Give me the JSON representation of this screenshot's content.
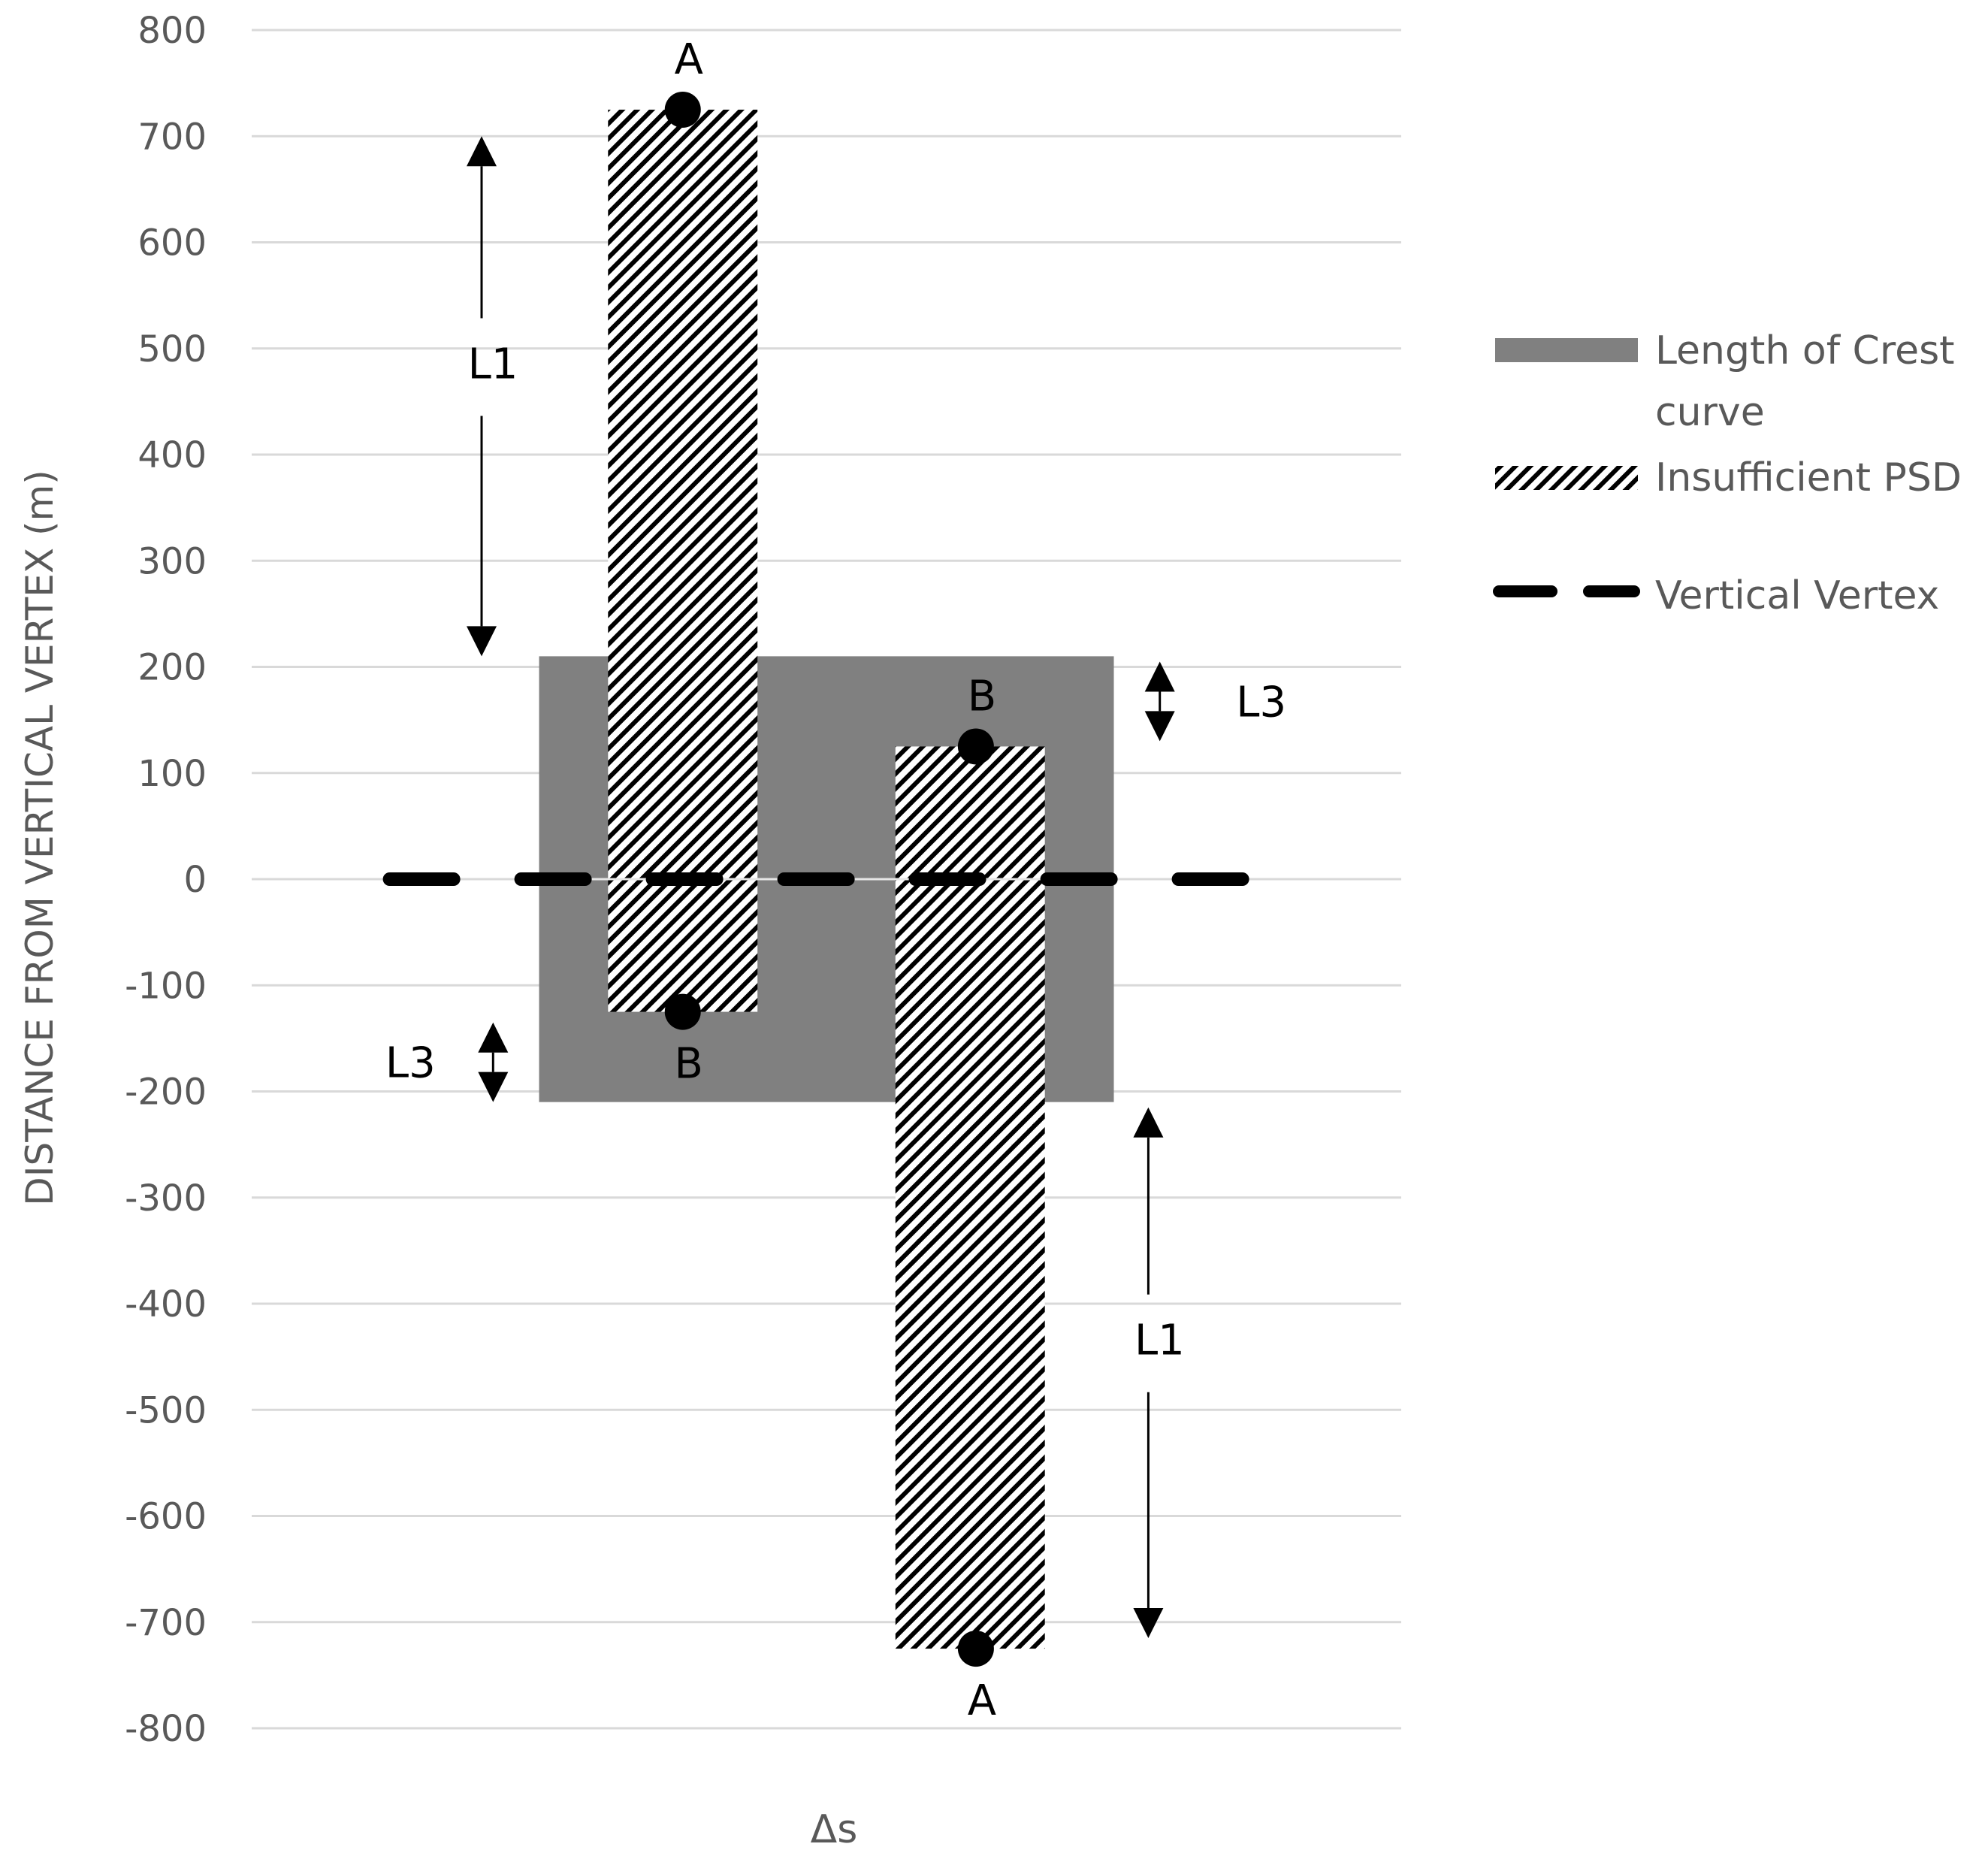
{
  "chart_data": {
    "type": "bar",
    "title": "",
    "xlabel": "Δs",
    "ylabel": "DISTANCE FROM VERTICAL VERTEX (m)",
    "ylim": [
      -800,
      800
    ],
    "yticks": [
      800,
      700,
      600,
      500,
      400,
      300,
      200,
      100,
      0,
      -100,
      -200,
      -300,
      -400,
      -500,
      -600,
      -700,
      -800
    ],
    "grid": true,
    "legend_position": "right",
    "series": [
      {
        "name": "Length of Crest curve",
        "fill": "solid",
        "color": "#808080",
        "bars": [
          {
            "x_start": 0.25,
            "x_end": 0.75,
            "y_bottom": -210,
            "y_top": 210
          }
        ]
      },
      {
        "name": "Insufficient PSD",
        "fill": "hatched",
        "color": "#000000",
        "bars": [
          {
            "x_start": 0.31,
            "x_end": 0.44,
            "y_bottom": -125,
            "y_top": 725
          },
          {
            "x_start": 0.56,
            "x_end": 0.69,
            "y_bottom": -725,
            "y_top": 125
          }
        ]
      },
      {
        "name": "Vertical Vertex",
        "line": "dashed",
        "color": "#000000",
        "y": 0,
        "x_start": 0.12,
        "x_end": 0.88
      }
    ],
    "legend": [
      {
        "label": "Length of Crest curve",
        "style": "solid-grey"
      },
      {
        "label": "Insufficient PSD",
        "style": "hatched"
      },
      {
        "label": "Vertical Vertex",
        "style": "dashed-line"
      }
    ],
    "points": [
      {
        "label": "A",
        "x": 0.375,
        "y": 725,
        "label_pos": "above"
      },
      {
        "label": "B",
        "x": 0.375,
        "y": -125,
        "label_pos": "below"
      },
      {
        "label": "B",
        "x": 0.63,
        "y": 125,
        "label_pos": "above"
      },
      {
        "label": "A",
        "x": 0.63,
        "y": -725,
        "label_pos": "below"
      }
    ],
    "annotations": [
      {
        "label": "L1",
        "type": "double-arrow",
        "x": 0.2,
        "y_from": 700,
        "y_to": 210
      },
      {
        "label": "L3",
        "type": "double-arrow",
        "x": 0.21,
        "y_from": -135,
        "y_to": -210
      },
      {
        "label": "L3",
        "type": "double-arrow",
        "x": 0.79,
        "y_from": 205,
        "y_to": 130
      },
      {
        "label": "L1",
        "type": "double-arrow",
        "x": 0.78,
        "y_from": -215,
        "y_to": -715
      }
    ]
  }
}
